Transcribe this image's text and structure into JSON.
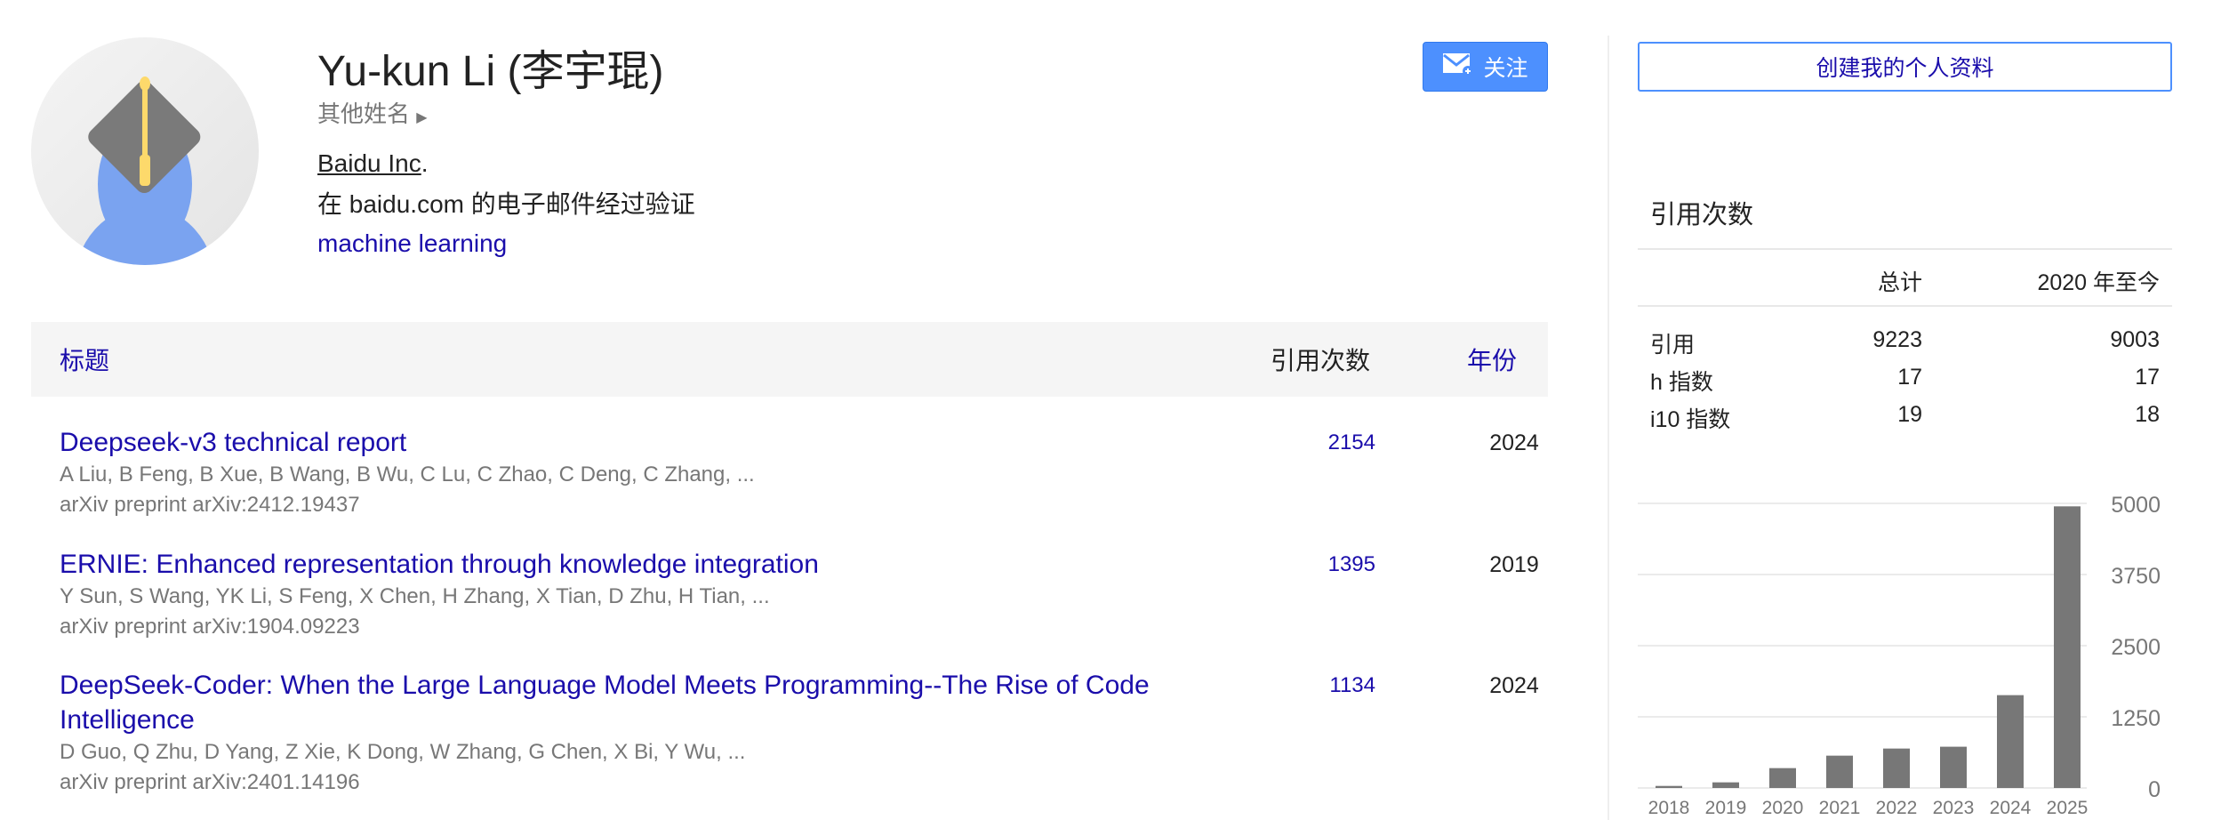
{
  "profile": {
    "name": "Yu-kun Li (李宇琨)",
    "other_names": "其他姓名",
    "affiliation": "Baidu Inc",
    "affiliation_suffix": ".",
    "email_verified": "在 baidu.com 的电子邮件经过验证",
    "interest": "machine learning",
    "follow": "关注",
    "create_profile": "创建我的个人资料"
  },
  "table": {
    "header": {
      "title": "标题",
      "cited_by": "引用次数",
      "year": "年份"
    },
    "rows": [
      {
        "title": "Deepseek-v3 technical report",
        "authors": "A Liu, B Feng, B Xue, B Wang, B Wu, C Lu, C Zhao, C Deng, C Zhang, ...",
        "venue": "arXiv preprint arXiv:2412.19437",
        "cites": "2154",
        "year": "2024"
      },
      {
        "title": "ERNIE: Enhanced representation through knowledge integration",
        "authors": "Y Sun, S Wang, YK Li, S Feng, X Chen, H Zhang, X Tian, D Zhu, H Tian, ...",
        "venue": "arXiv preprint arXiv:1904.09223",
        "cites": "1395",
        "year": "2019"
      },
      {
        "title": "DeepSeek-Coder: When the Large Language Model Meets Programming--The Rise of Code Intelligence",
        "authors": "D Guo, Q Zhu, D Yang, Z Xie, K Dong, W Zhang, G Chen, X Bi, Y Wu, ...",
        "venue": "arXiv preprint arXiv:2401.14196",
        "cites": "1134",
        "year": "2024"
      }
    ]
  },
  "stats": {
    "title": "引用次数",
    "col_total": "总计",
    "col_since": "2020 年至今",
    "rows": [
      {
        "label": "引用",
        "total": "9223",
        "since": "9003"
      },
      {
        "label": "h 指数",
        "total": "17",
        "since": "17"
      },
      {
        "label": "i10 指数",
        "total": "19",
        "since": "18"
      }
    ]
  },
  "chart_data": {
    "type": "bar",
    "categories": [
      "2018",
      "2019",
      "2020",
      "2021",
      "2022",
      "2023",
      "2024",
      "2025"
    ],
    "values": [
      36,
      99,
      349,
      568,
      693,
      725,
      1631,
      4948
    ],
    "yticks": [
      "0",
      "1250",
      "2500",
      "3750",
      "5000"
    ],
    "ylim": [
      0,
      5000
    ],
    "grid": true,
    "bar_color": "#777777"
  },
  "colors": {
    "link": "#1a0dab",
    "accent": "#4d90fe"
  }
}
